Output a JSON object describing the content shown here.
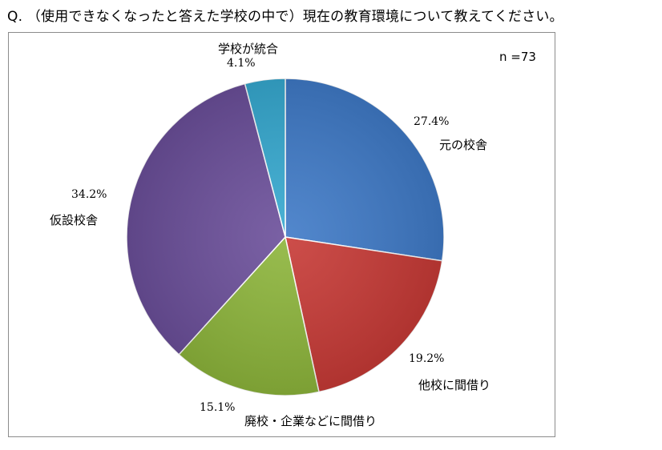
{
  "question": "Q. （使用できなくなったと答えた学校の中で）現在の教育環境について教えてください。",
  "n_label": "n =73",
  "chart_data": {
    "type": "pie",
    "title": "",
    "slices": [
      {
        "label": "元の校舎",
        "value": 27.4,
        "pct_text": "27.4%",
        "color": "#3f7ac7"
      },
      {
        "label": "他校に間借り",
        "value": 19.2,
        "pct_text": "19.2%",
        "color": "#c73a36"
      },
      {
        "label": "廃校・企業などに間借り",
        "value": 15.1,
        "pct_text": "15.1%",
        "color": "#8db53b"
      },
      {
        "label": "仮設校舎",
        "value": 34.2,
        "pct_text": "34.2%",
        "color": "#6b4f9a"
      },
      {
        "label": "学校が統合",
        "value": 4.1,
        "pct_text": "4.1%",
        "color": "#36a9d0"
      }
    ]
  }
}
